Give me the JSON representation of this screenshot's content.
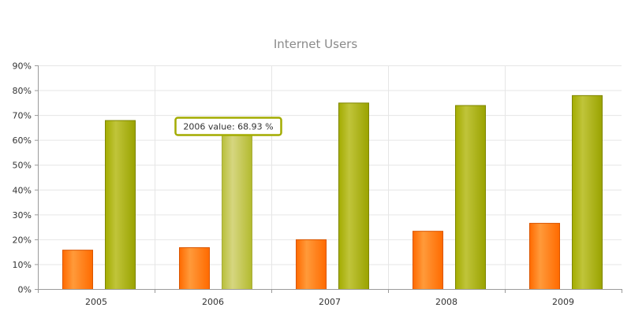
{
  "chart_data": {
    "type": "bar",
    "title": "Internet Users",
    "categories": [
      "2005",
      "2006",
      "2007",
      "2008",
      "2009"
    ],
    "series": [
      {
        "values": [
          15.8,
          16.8,
          20.0,
          23.4,
          26.6
        ],
        "color": "#ff6a00"
      },
      {
        "values": [
          67.96,
          68.93,
          75.0,
          74.0,
          78.0
        ],
        "color": "#a3ac00"
      }
    ],
    "ylim": [
      0,
      90
    ],
    "ytick_labels": [
      "0%",
      "10%",
      "20%",
      "30%",
      "40%",
      "50%",
      "60%",
      "70%",
      "80%",
      "90%"
    ],
    "grid": true,
    "highlight": {
      "category_index": 1,
      "series_index": 1
    },
    "tooltip": {
      "text": "2006 value: 68.93 %"
    },
    "colors": {
      "grid": "#e6e6e6",
      "axis": "#9a9a9a",
      "highlight": "#c9c35d",
      "tooltip_border": "#a3ac00"
    }
  }
}
